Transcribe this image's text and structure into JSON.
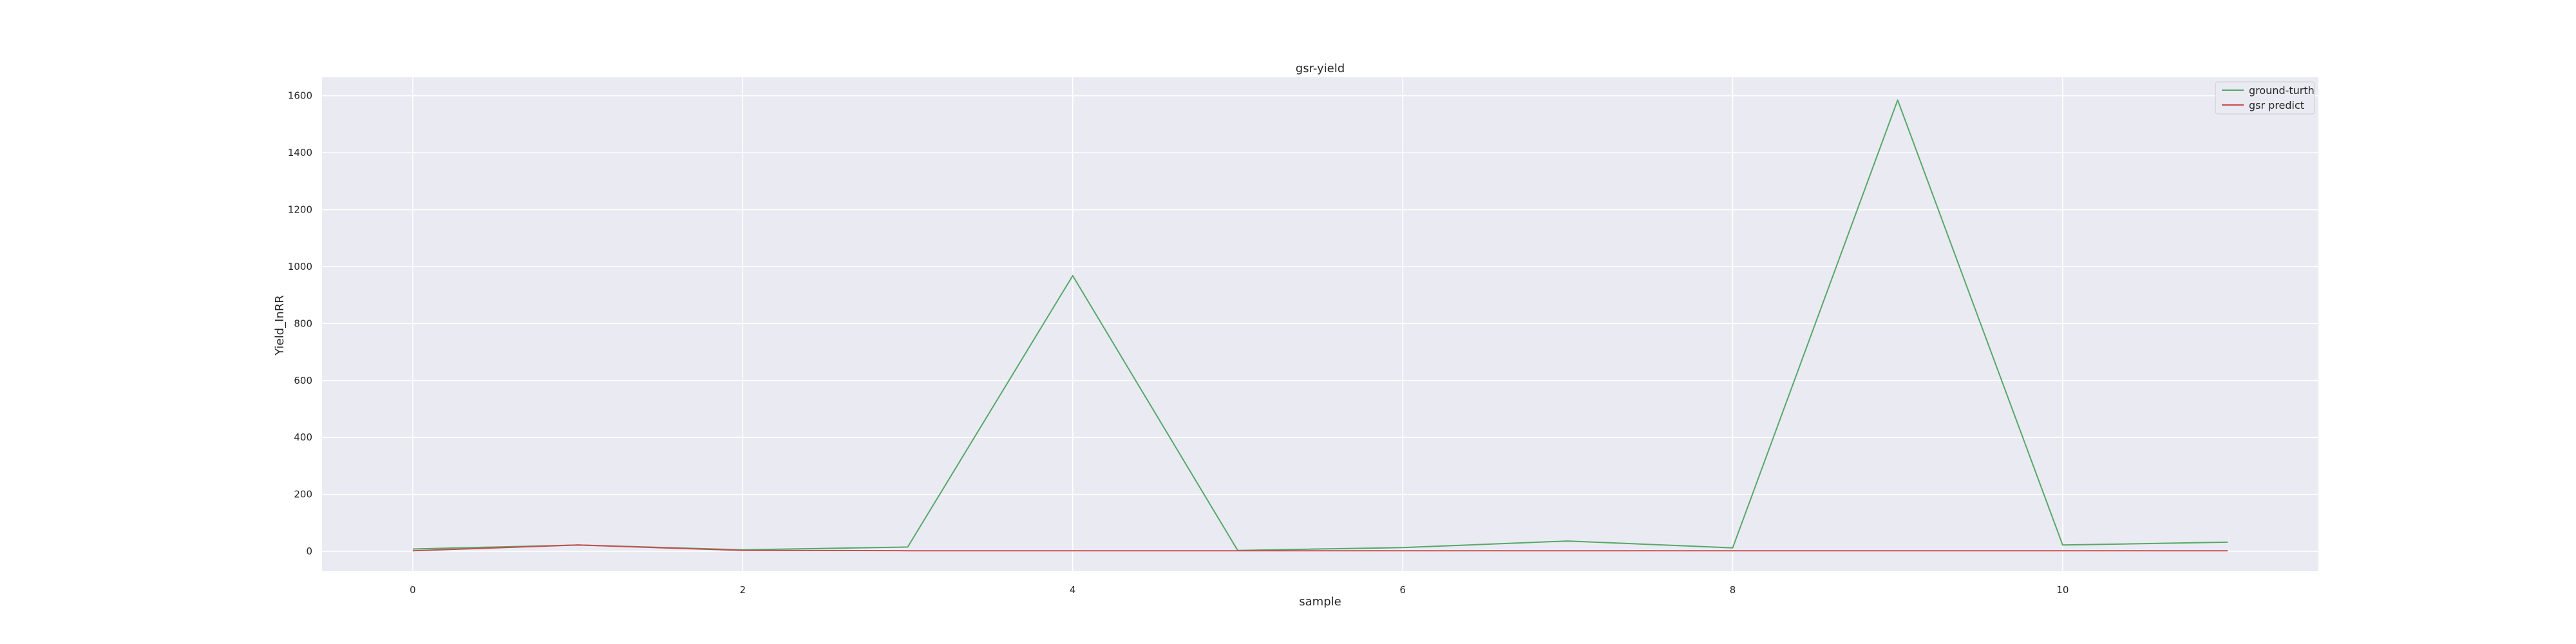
{
  "chart_data": {
    "type": "line",
    "title": "gsr-yield",
    "xlabel": "sample",
    "ylabel": "Yield_InRR",
    "x": [
      0,
      1,
      2,
      3,
      4,
      5,
      6,
      7,
      8,
      9,
      10,
      11
    ],
    "xlim": [
      -0.55,
      11.55
    ],
    "ylim": [
      -70,
      1665
    ],
    "xticks": [
      0,
      2,
      4,
      6,
      8,
      10
    ],
    "yticks": [
      0,
      200,
      400,
      600,
      800,
      1000,
      1200,
      1400,
      1600
    ],
    "grid": true,
    "legend_position": "top-right",
    "series": [
      {
        "name": "ground-turth",
        "color": "#55a868",
        "values": [
          8,
          22,
          5,
          15,
          968,
          3,
          13,
          36,
          12,
          1585,
          22,
          32
        ]
      },
      {
        "name": "gsr predict",
        "color": "#c44e52",
        "values": [
          2,
          22,
          3,
          2,
          2,
          2,
          2,
          2,
          2,
          2,
          2,
          2
        ]
      }
    ]
  }
}
